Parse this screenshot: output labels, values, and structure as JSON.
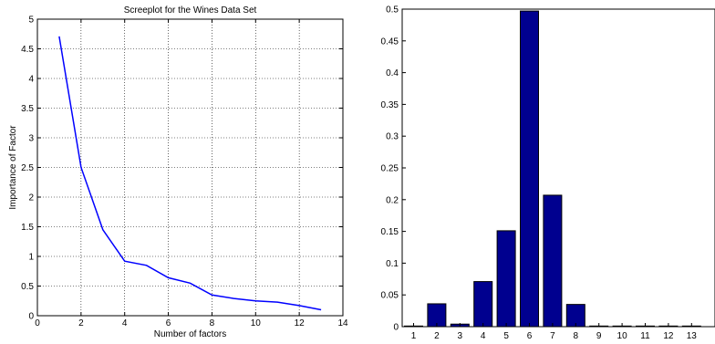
{
  "chart_data": [
    {
      "type": "line",
      "title": "Screeplot for the Wines Data Set",
      "xlabel": "Number of factors",
      "ylabel": "Importance of Factor",
      "xlim": [
        0,
        14
      ],
      "ylim": [
        0,
        5
      ],
      "xticks": [
        "0",
        "2",
        "4",
        "6",
        "8",
        "10",
        "12",
        "14"
      ],
      "yticks": [
        "0",
        "0.5",
        "1",
        "1.5",
        "2",
        "2.5",
        "3",
        "3.5",
        "4",
        "4.5",
        "5"
      ],
      "grid": true,
      "line_color": "#0000ff",
      "series": [
        {
          "x": [
            1,
            2,
            3,
            4,
            5,
            6,
            7,
            8,
            9,
            10,
            11,
            12,
            13
          ],
          "values": [
            4.71,
            2.5,
            1.45,
            0.92,
            0.85,
            0.64,
            0.55,
            0.35,
            0.29,
            0.25,
            0.23,
            0.17,
            0.1
          ]
        }
      ]
    },
    {
      "type": "bar",
      "title": "",
      "xlabel": "",
      "ylabel": "",
      "ylim": [
        0,
        0.5
      ],
      "yticks": [
        "0",
        "0.05",
        "0.1",
        "0.15",
        "0.2",
        "0.25",
        "0.3",
        "0.35",
        "0.4",
        "0.45",
        "0.5"
      ],
      "categories": [
        "1",
        "2",
        "3",
        "4",
        "5",
        "6",
        "7",
        "8",
        "9",
        "10",
        "11",
        "12",
        "13"
      ],
      "values": [
        0.001,
        0.036,
        0.004,
        0.071,
        0.151,
        0.497,
        0.207,
        0.035,
        0.001,
        0.001,
        0.001,
        0.001,
        0.001
      ],
      "grid": false,
      "bar_color": "#00008f"
    }
  ]
}
